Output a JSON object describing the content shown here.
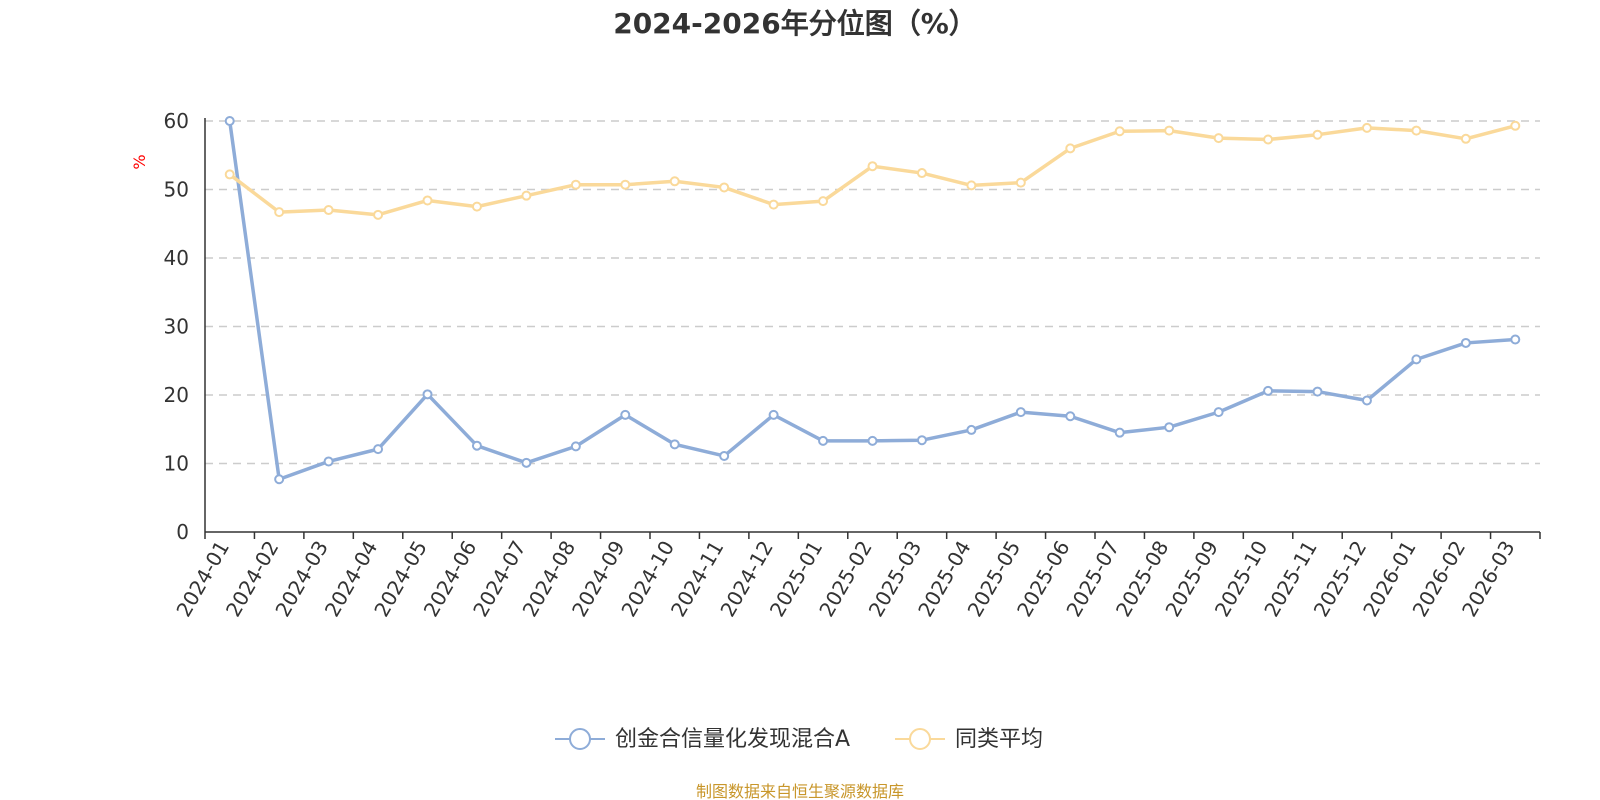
{
  "chart_data": {
    "type": "line",
    "title": "2024-2026年分位图（%）",
    "ylabel": "%",
    "xlabel": "",
    "ylim": [
      0,
      60
    ],
    "yticks": [
      0,
      10,
      20,
      30,
      40,
      50,
      60
    ],
    "grid": "horizontal dashed",
    "categories": [
      "2024-01",
      "2024-02",
      "2024-03",
      "2024-04",
      "2024-05",
      "2024-06",
      "2024-07",
      "2024-08",
      "2024-09",
      "2024-10",
      "2024-11",
      "2024-12",
      "2025-01",
      "2025-02",
      "2025-03",
      "2025-04",
      "2025-05",
      "2025-06",
      "2025-07",
      "2025-08",
      "2025-09",
      "2025-10",
      "2025-11",
      "2025-12",
      "2026-01",
      "2026-02",
      "2026-03"
    ],
    "series": [
      {
        "name": "创金合信量化发现混合A",
        "color": "#8eacd8",
        "values": [
          60,
          7.7,
          10.3,
          12.1,
          20.1,
          12.6,
          10.1,
          12.5,
          17.1,
          12.8,
          11.1,
          17.1,
          13.3,
          13.3,
          13.4,
          14.9,
          17.5,
          16.9,
          14.5,
          15.3,
          17.5,
          20.6,
          20.5,
          19.2,
          25.2,
          27.6,
          28.1
        ]
      },
      {
        "name": "同类平均",
        "color": "#fad99a",
        "values": [
          52.2,
          46.7,
          47.0,
          46.3,
          48.4,
          47.5,
          49.1,
          50.7,
          50.7,
          51.2,
          50.3,
          47.8,
          48.3,
          53.4,
          52.4,
          50.6,
          51.0,
          56.0,
          58.5,
          58.6,
          57.5,
          57.3,
          58.0,
          59.0,
          58.6,
          57.4,
          59.3
        ]
      }
    ],
    "legend_position": "bottom-center"
  },
  "colors": {
    "unit_label": "#ff0000",
    "source_text": "#c8962a"
  },
  "source": "制图数据来自恒生聚源数据库"
}
